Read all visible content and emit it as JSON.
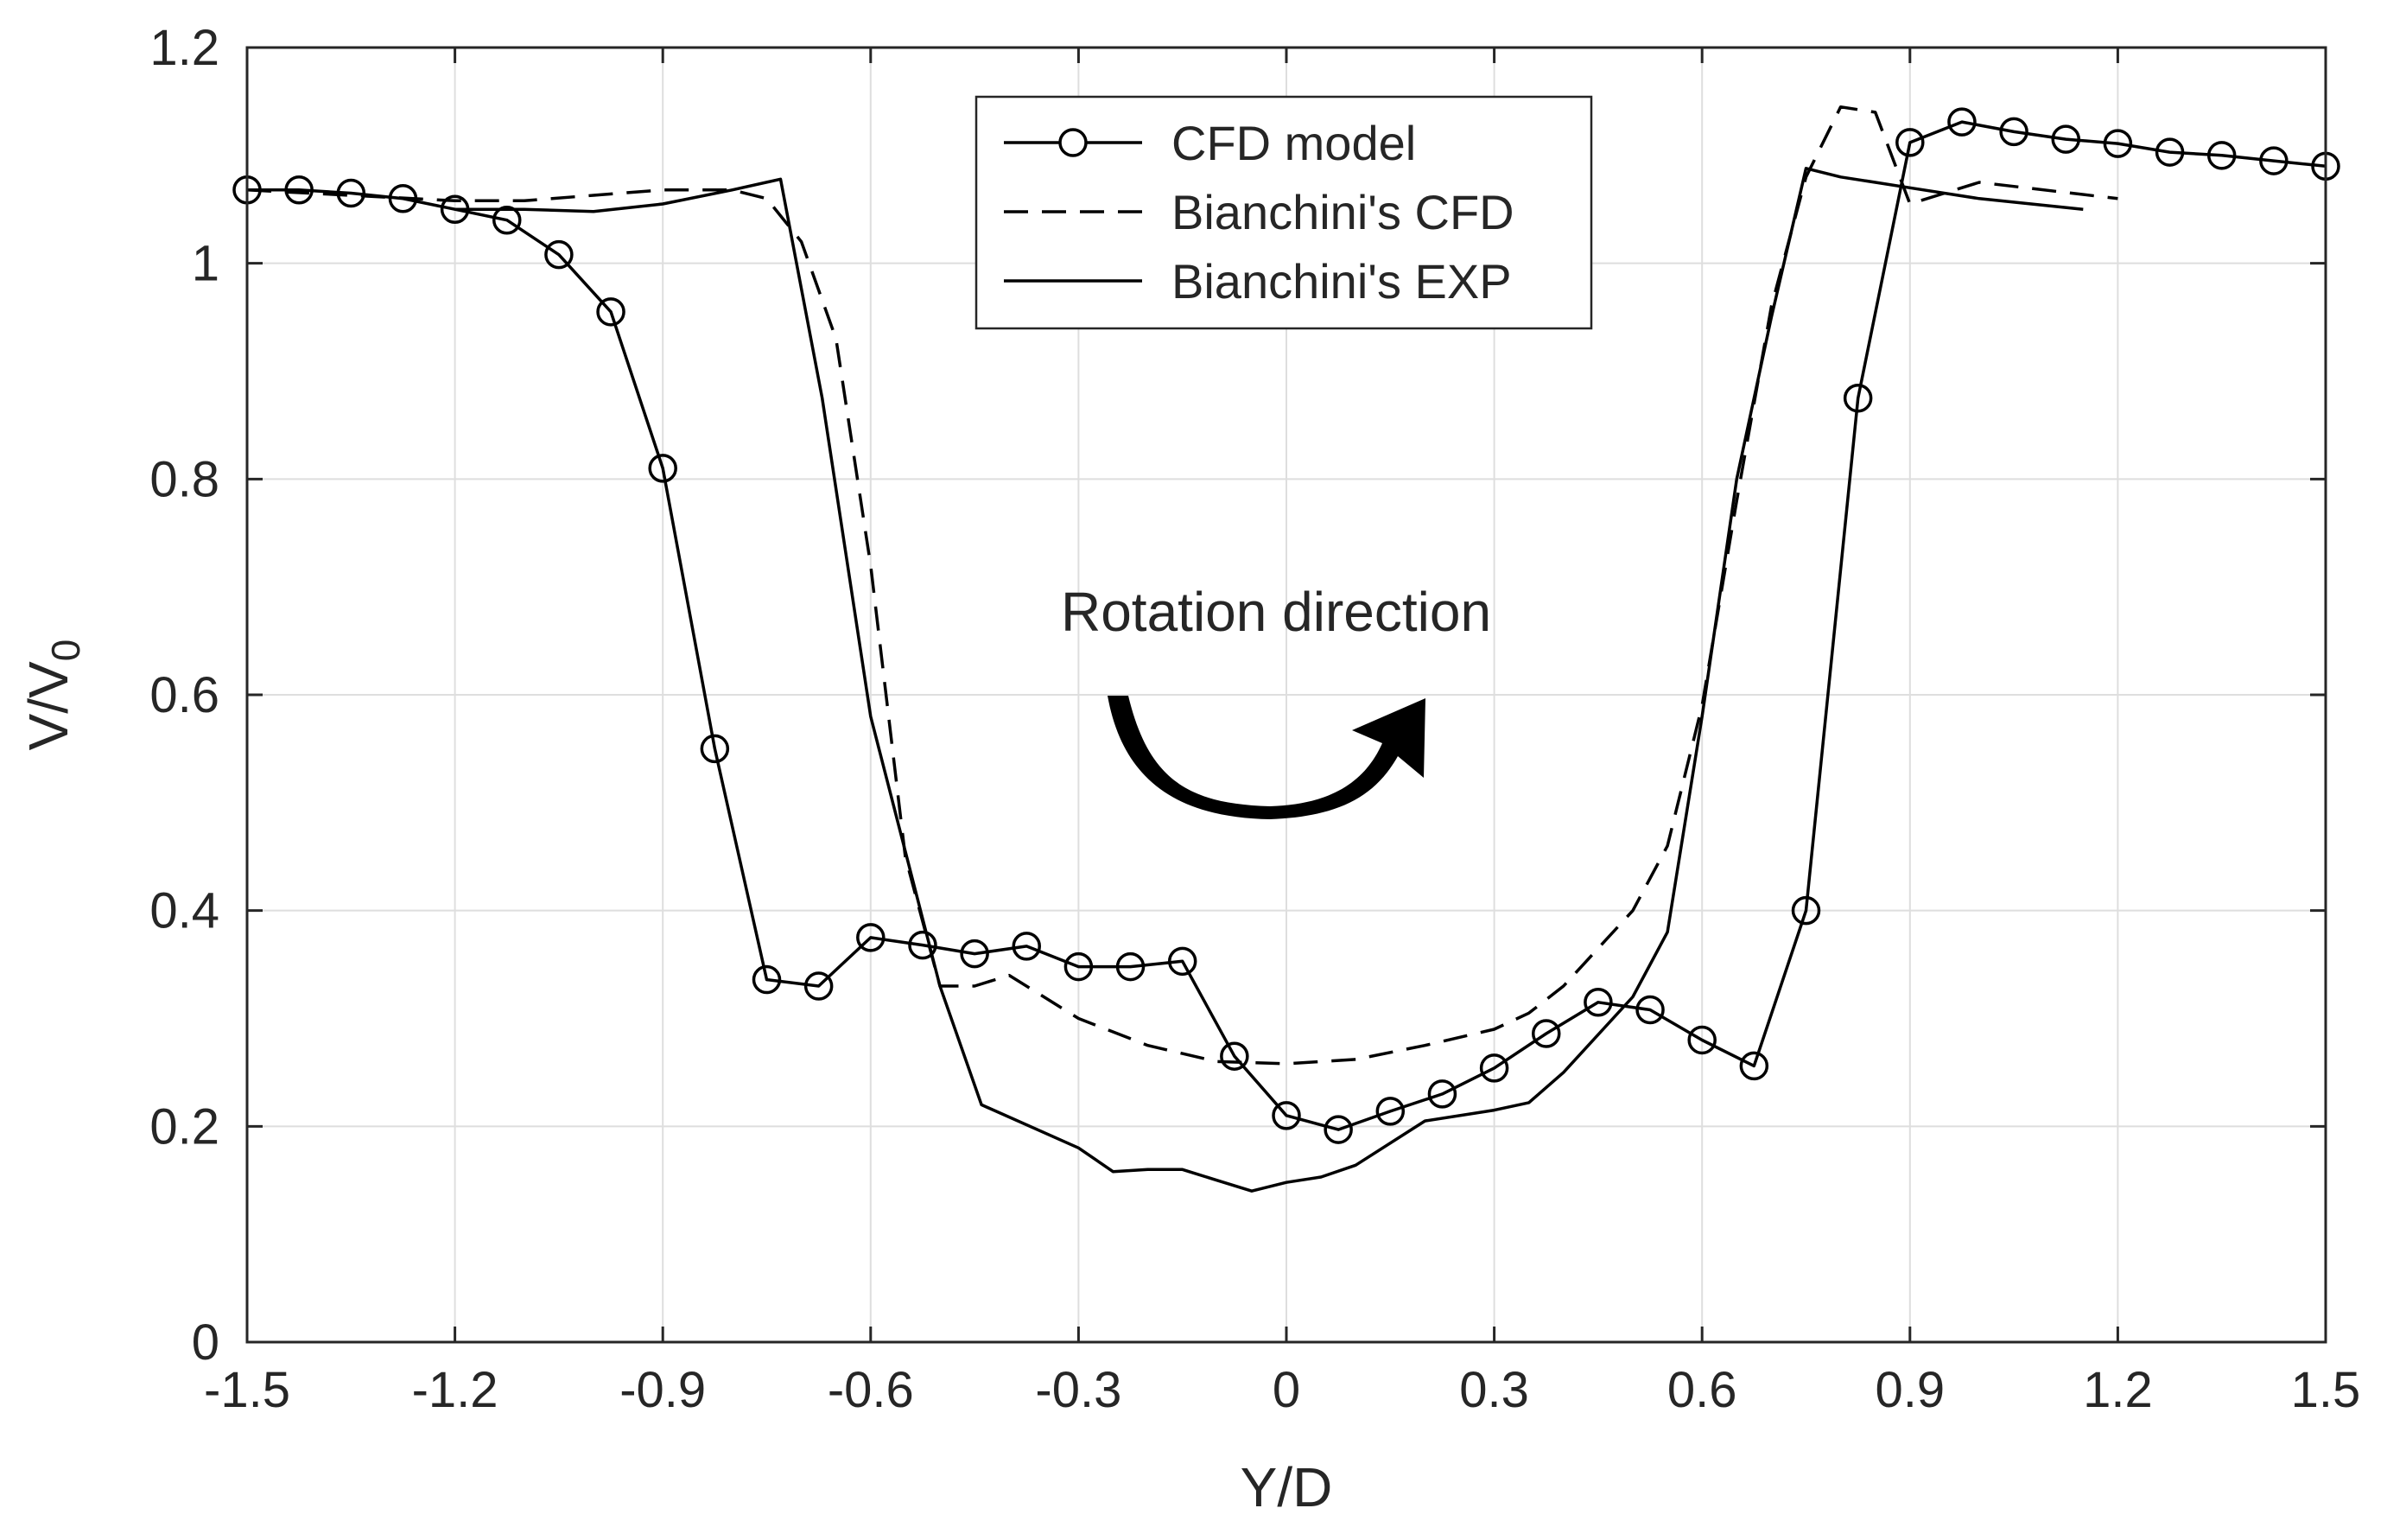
{
  "chart_data": {
    "type": "line",
    "title": "",
    "xlabel": "Y/D",
    "ylabel_main": "V/V",
    "ylabel_sub": "0",
    "xlim": [
      -1.5,
      1.5
    ],
    "ylim": [
      0,
      1.2
    ],
    "xticks": [
      -1.5,
      -1.2,
      -0.9,
      -0.6,
      -0.3,
      0,
      0.3,
      0.6,
      0.9,
      1.2,
      1.5
    ],
    "xtick_labels": [
      "-1.5",
      "-1.2",
      "-0.9",
      "-0.6",
      "-0.3",
      "0",
      "0.3",
      "0.6",
      "0.9",
      "1.2",
      "1.5"
    ],
    "yticks": [
      0,
      0.2,
      0.4,
      0.6,
      0.8,
      1.0,
      1.2
    ],
    "ytick_labels": [
      "0",
      "0.2",
      "0.4",
      "0.6",
      "0.8",
      "1",
      "1.2"
    ],
    "grid": true,
    "legend_position": "top-center",
    "annotation": "Rotation direction",
    "series": [
      {
        "name": "CFD model",
        "style": "solid-circle-markers",
        "x": [
          -1.5,
          -1.425,
          -1.35,
          -1.275,
          -1.2,
          -1.125,
          -1.05,
          -0.975,
          -0.9,
          -0.825,
          -0.75,
          -0.675,
          -0.6,
          -0.525,
          -0.45,
          -0.375,
          -0.3,
          -0.225,
          -0.15,
          -0.075,
          0,
          0.075,
          0.15,
          0.225,
          0.3,
          0.375,
          0.45,
          0.525,
          0.6,
          0.675,
          0.75,
          0.825,
          0.9,
          0.975,
          1.05,
          1.125,
          1.2,
          1.275,
          1.35,
          1.425,
          1.5
        ],
        "values": [
          1.068,
          1.068,
          1.065,
          1.06,
          1.05,
          1.04,
          1.008,
          0.955,
          0.81,
          0.55,
          0.336,
          0.33,
          0.375,
          0.368,
          0.36,
          0.367,
          0.348,
          0.348,
          0.353,
          0.265,
          0.21,
          0.197,
          0.214,
          0.23,
          0.254,
          0.286,
          0.315,
          0.308,
          0.28,
          0.256,
          0.4,
          0.875,
          1.112,
          1.131,
          1.122,
          1.115,
          1.111,
          1.103,
          1.1,
          1.095,
          1.09
        ]
      },
      {
        "name": "Bianchini's CFD",
        "style": "dashed",
        "x": [
          -1.5,
          -1.2,
          -1.1,
          -1.0,
          -0.9,
          -0.8,
          -0.75,
          -0.7,
          -0.65,
          -0.6,
          -0.55,
          -0.5,
          -0.45,
          -0.4,
          -0.3,
          -0.2,
          -0.1,
          0,
          0.1,
          0.2,
          0.3,
          0.35,
          0.4,
          0.5,
          0.55,
          0.6,
          0.65,
          0.7,
          0.75,
          0.8,
          0.85,
          0.9,
          1.0,
          1.2
        ],
        "values": [
          1.068,
          1.058,
          1.058,
          1.063,
          1.068,
          1.068,
          1.06,
          1.02,
          0.93,
          0.72,
          0.45,
          0.33,
          0.33,
          0.34,
          0.3,
          0.275,
          0.26,
          0.258,
          0.262,
          0.275,
          0.29,
          0.305,
          0.33,
          0.4,
          0.46,
          0.59,
          0.78,
          0.96,
          1.08,
          1.145,
          1.14,
          1.055,
          1.075,
          1.06
        ]
      },
      {
        "name": "Bianchini's EXP",
        "style": "solid",
        "x": [
          -1.2,
          -1.1,
          -1.0,
          -0.9,
          -0.8,
          -0.73,
          -0.67,
          -0.6,
          -0.5,
          -0.44,
          -0.3,
          -0.25,
          -0.2,
          -0.15,
          -0.1,
          -0.05,
          0,
          0.05,
          0.1,
          0.2,
          0.3,
          0.35,
          0.4,
          0.5,
          0.55,
          0.6,
          0.65,
          0.7,
          0.75,
          0.8,
          0.85,
          0.9,
          1.0,
          1.15
        ],
        "values": [
          1.05,
          1.05,
          1.048,
          1.055,
          1.068,
          1.078,
          0.875,
          0.58,
          0.33,
          0.22,
          0.18,
          0.158,
          0.16,
          0.16,
          0.15,
          0.14,
          0.148,
          0.153,
          0.164,
          0.205,
          0.215,
          0.222,
          0.25,
          0.32,
          0.38,
          0.58,
          0.8,
          0.95,
          1.088,
          1.08,
          1.075,
          1.07,
          1.06,
          1.05
        ]
      }
    ]
  }
}
